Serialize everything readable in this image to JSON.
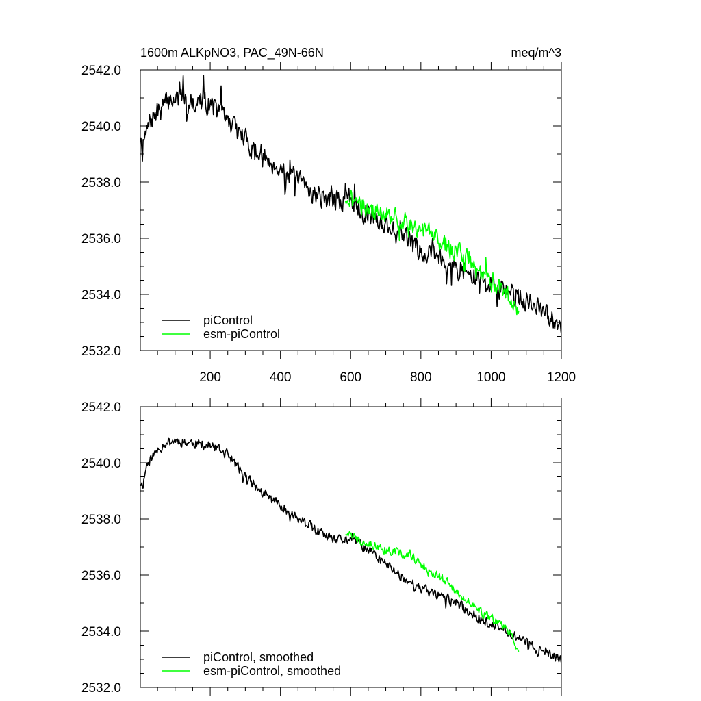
{
  "chart_data": [
    {
      "type": "line",
      "title": "1600m ALKpNO3, PAC_49N-66N",
      "units": "meq/m^3",
      "xlim": [
        1,
        1200
      ],
      "ylim": [
        2532.0,
        2542.0
      ],
      "x_ticks": [
        200,
        400,
        600,
        800,
        1000,
        1200
      ],
      "y_ticks": [
        "2532.0",
        "2534.0",
        "2536.0",
        "2538.0",
        "2540.0",
        "2542.0"
      ],
      "show_x_tick_labels": true,
      "grid": false,
      "legend_position": "bottom-left",
      "series": [
        {
          "name": "piControl",
          "color": "#000000",
          "x_start": 1,
          "x_end": 1200,
          "anchors": [
            [
              1,
              2539.6
            ],
            [
              10,
              2539.4
            ],
            [
              30,
              2540.2
            ],
            [
              60,
              2540.6
            ],
            [
              90,
              2541.0
            ],
            [
              150,
              2540.9
            ],
            [
              200,
              2540.8
            ],
            [
              250,
              2540.2
            ],
            [
              300,
              2539.5
            ],
            [
              350,
              2538.9
            ],
            [
              400,
              2538.5
            ],
            [
              450,
              2538.0
            ],
            [
              500,
              2537.6
            ],
            [
              550,
              2537.3
            ],
            [
              600,
              2537.4
            ],
            [
              650,
              2536.9
            ],
            [
              700,
              2536.5
            ],
            [
              750,
              2536.0
            ],
            [
              800,
              2535.6
            ],
            [
              850,
              2535.4
            ],
            [
              900,
              2535.0
            ],
            [
              950,
              2534.6
            ],
            [
              1000,
              2534.3
            ],
            [
              1050,
              2534.1
            ],
            [
              1100,
              2533.8
            ],
            [
              1150,
              2533.3
            ],
            [
              1200,
              2533.0
            ]
          ],
          "noise": 0.55,
          "spike": 0.9,
          "seed": 7
        },
        {
          "name": "esm-piControl",
          "color": "#00ff00",
          "x_start": 585,
          "x_end": 1080,
          "anchors": [
            [
              585,
              2537.5
            ],
            [
              620,
              2537.3
            ],
            [
              660,
              2537.0
            ],
            [
              700,
              2536.9
            ],
            [
              740,
              2536.6
            ],
            [
              780,
              2536.5
            ],
            [
              820,
              2536.2
            ],
            [
              860,
              2535.9
            ],
            [
              900,
              2535.5
            ],
            [
              940,
              2535.1
            ],
            [
              980,
              2534.7
            ],
            [
              1020,
              2534.3
            ],
            [
              1060,
              2533.8
            ],
            [
              1080,
              2533.2
            ]
          ],
          "noise": 0.5,
          "spike": 0.6,
          "seed": 21
        }
      ]
    },
    {
      "type": "line",
      "xlim": [
        1,
        1200
      ],
      "ylim": [
        2532.0,
        2542.0
      ],
      "x_ticks": [
        200,
        400,
        600,
        800,
        1000,
        1200
      ],
      "y_ticks": [
        "2532.0",
        "2534.0",
        "2536.0",
        "2538.0",
        "2540.0",
        "2542.0"
      ],
      "show_x_tick_labels": false,
      "grid": false,
      "legend_position": "bottom-left",
      "series": [
        {
          "name": "piControl, smoothed",
          "color": "#000000",
          "x_start": 1,
          "x_end": 1200,
          "anchors": [
            [
              1,
              2539.3
            ],
            [
              8,
              2539.2
            ],
            [
              20,
              2540.0
            ],
            [
              40,
              2540.3
            ],
            [
              70,
              2540.7
            ],
            [
              100,
              2540.8
            ],
            [
              150,
              2540.7
            ],
            [
              200,
              2540.6
            ],
            [
              250,
              2540.3
            ],
            [
              300,
              2539.5
            ],
            [
              350,
              2538.9
            ],
            [
              400,
              2538.5
            ],
            [
              450,
              2538.0
            ],
            [
              500,
              2537.6
            ],
            [
              550,
              2537.2
            ],
            [
              600,
              2537.3
            ],
            [
              650,
              2536.9
            ],
            [
              700,
              2536.4
            ],
            [
              750,
              2535.9
            ],
            [
              800,
              2535.5
            ],
            [
              850,
              2535.3
            ],
            [
              900,
              2535.0
            ],
            [
              950,
              2534.6
            ],
            [
              1000,
              2534.2
            ],
            [
              1050,
              2534.0
            ],
            [
              1100,
              2533.6
            ],
            [
              1150,
              2533.2
            ],
            [
              1200,
              2533.0
            ]
          ],
          "noise": 0.25,
          "spike": 0.35,
          "seed": 11
        },
        {
          "name": "esm-piControl, smoothed",
          "color": "#00ff00",
          "x_start": 585,
          "x_end": 1080,
          "anchors": [
            [
              585,
              2537.5
            ],
            [
              620,
              2537.3
            ],
            [
              660,
              2537.1
            ],
            [
              700,
              2536.9
            ],
            [
              740,
              2536.8
            ],
            [
              780,
              2536.6
            ],
            [
              820,
              2536.2
            ],
            [
              860,
              2535.9
            ],
            [
              900,
              2535.4
            ],
            [
              940,
              2535.0
            ],
            [
              980,
              2534.6
            ],
            [
              1020,
              2534.3
            ],
            [
              1060,
              2533.9
            ],
            [
              1080,
              2533.2
            ]
          ],
          "noise": 0.22,
          "spike": 0.3,
          "seed": 33
        }
      ]
    }
  ]
}
